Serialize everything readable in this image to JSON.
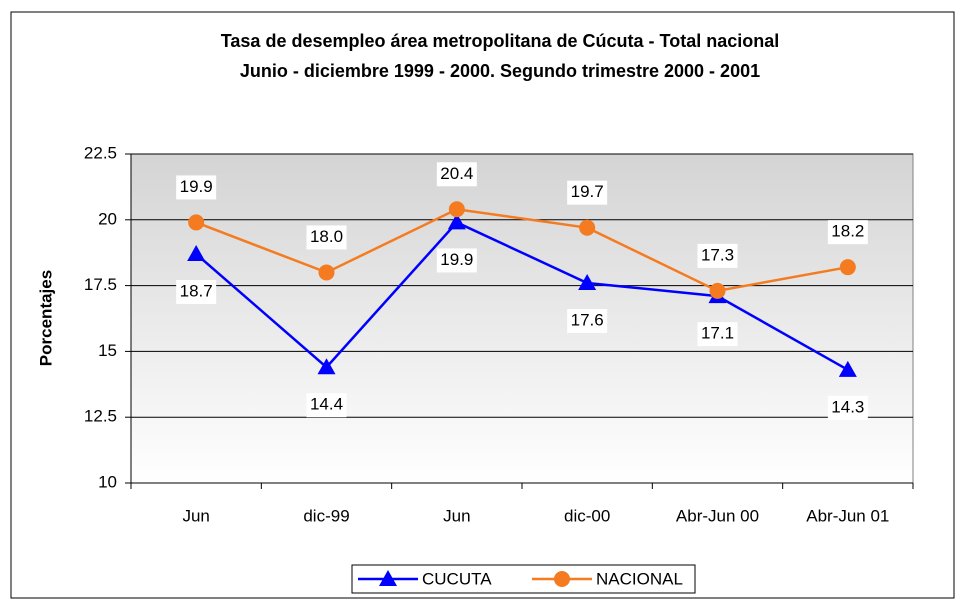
{
  "chart_data": {
    "type": "line",
    "title": [
      "Tasa de desempleo área metropolitana de Cúcuta - Total  nacional",
      "Junio - diciembre 1999 - 2000. Segundo trimestre 2000 - 2001"
    ],
    "y_label": "Porcentajes",
    "categories": [
      "Jun",
      "dic-99",
      "Jun",
      "dic-00",
      "Abr-Jun 00",
      "Abr-Jun 01"
    ],
    "series": [
      {
        "name": "CUCUTA",
        "color": "#0000ff",
        "marker": "triangle",
        "label_position": "below",
        "values": [
          18.7,
          14.4,
          19.9,
          17.6,
          17.1,
          14.3
        ],
        "value_labels": [
          "18.7",
          "14.4",
          "19.9",
          "17.6",
          "17.1",
          "14.3"
        ]
      },
      {
        "name": "NACIONAL",
        "color": "#f47b20",
        "marker": "circle",
        "label_position": "above",
        "values": [
          19.9,
          18,
          20.4,
          19.7,
          17.3,
          18.2
        ],
        "value_labels": [
          "19.9",
          "18.0",
          "20.4",
          "19.7",
          "17.3",
          "18.2"
        ]
      }
    ],
    "ylim": [
      10,
      22.5
    ],
    "yticks": [
      10,
      12.5,
      15,
      17.5,
      20,
      22.5
    ],
    "grid": true,
    "legend": "bottom"
  }
}
